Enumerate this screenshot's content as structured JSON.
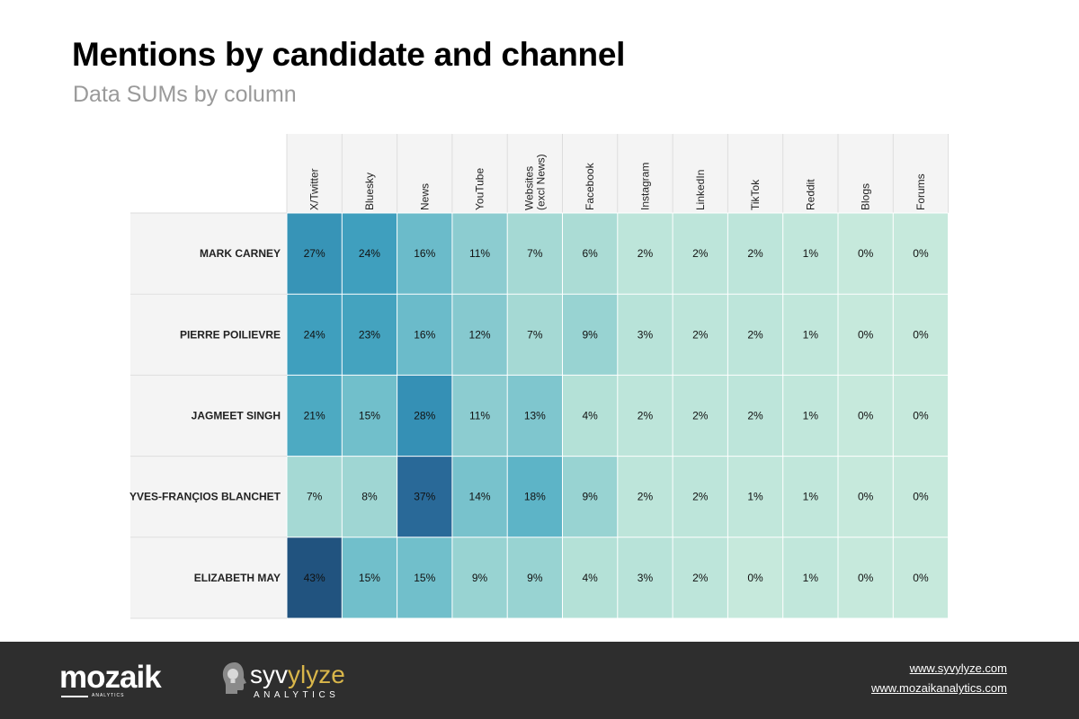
{
  "header": {
    "title": "Mentions by candidate and channel",
    "subtitle": "Data SUMs by column"
  },
  "chart_data": {
    "type": "heatmap",
    "title": "Mentions by candidate and channel",
    "subtitle": "Data SUMs by column",
    "columns": [
      "X/Twitter",
      "Bluesky",
      "News",
      "YouTube",
      "Websites\n(excl News)",
      "Facebook",
      "Instagram",
      "LinkedIn",
      "TikTok",
      "Reddit",
      "Blogs",
      "Forums"
    ],
    "rows": [
      "MARK CARNEY",
      "PIERRE POILIEVRE",
      "JAGMEET SINGH",
      "YVES-FRANÇIOS BLANCHET",
      "ELIZABETH MAY"
    ],
    "values": [
      [
        27,
        24,
        16,
        11,
        7,
        6,
        2,
        2,
        2,
        1,
        0,
        0
      ],
      [
        24,
        23,
        16,
        12,
        7,
        9,
        3,
        2,
        2,
        1,
        0,
        0
      ],
      [
        21,
        15,
        28,
        11,
        13,
        4,
        2,
        2,
        2,
        1,
        0,
        0
      ],
      [
        7,
        8,
        37,
        14,
        18,
        9,
        2,
        2,
        1,
        1,
        0,
        0
      ],
      [
        43,
        15,
        15,
        9,
        9,
        4,
        3,
        2,
        0,
        1,
        0,
        0
      ]
    ],
    "value_suffix": "%",
    "color_scale": [
      "#c6e9dc",
      "#aadcd5",
      "#84c8cf",
      "#5ab3c6",
      "#3c9dbd",
      "#2f86ae",
      "#296a99",
      "#21537f"
    ],
    "value_range": [
      0,
      43
    ]
  },
  "footer": {
    "logo_mozaik": "mozaik",
    "logo_mozaik_sub": "ANALYTICS",
    "logo_syv_a": "syv",
    "logo_syv_b": "ylyze",
    "logo_syv_sub": "ANALYTICS",
    "link_1": "www.syvylyze.com",
    "link_2": "www.mozaikanalytics.com"
  }
}
